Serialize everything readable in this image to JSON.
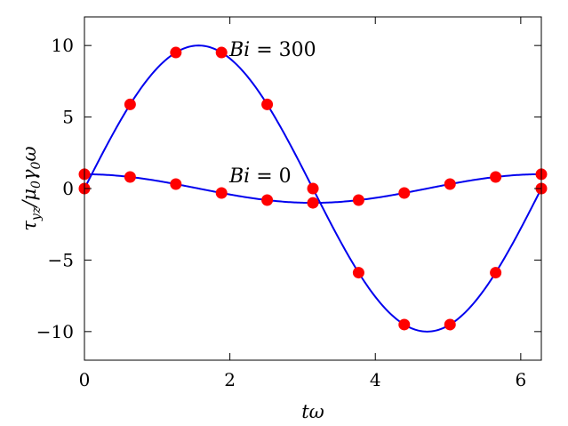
{
  "chart_data": {
    "type": "line",
    "xlabel": "tω",
    "ylabel": "τ_yz/μ₀γ₀ω",
    "xlim": [
      0,
      6.283
    ],
    "ylim": [
      -12,
      12
    ],
    "xticks": [
      0,
      2,
      4,
      6
    ],
    "yticks": [
      10,
      5,
      0,
      -5,
      -10
    ],
    "xtick_labels": [
      "0",
      "2",
      "4",
      "6"
    ],
    "ytick_labels": [
      "10",
      "5",
      "0",
      "−5",
      "−10"
    ],
    "grid": false,
    "legend": "none",
    "colors": {
      "line": "#0000ee",
      "marker": "#ff0000"
    },
    "series": [
      {
        "label": "Bi = 300",
        "marker_x": [
          0,
          0.628,
          1.257,
          1.885,
          2.513,
          3.142,
          3.77,
          4.398,
          5.027,
          5.655,
          6.283
        ],
        "marker_y": [
          0,
          5.88,
          9.51,
          9.51,
          5.88,
          0,
          -5.88,
          -9.51,
          -9.51,
          -5.88,
          0
        ],
        "curve": "10 sin(tω)"
      },
      {
        "label": "Bi = 0",
        "marker_x": [
          0,
          0.628,
          1.257,
          1.885,
          2.513,
          3.142,
          3.77,
          4.398,
          5.027,
          5.655,
          6.283
        ],
        "marker_y": [
          1.0,
          0.81,
          0.31,
          -0.31,
          -0.81,
          -1.0,
          -0.81,
          -0.31,
          0.31,
          0.81,
          1.0
        ],
        "curve": "cos(tω)"
      }
    ]
  }
}
